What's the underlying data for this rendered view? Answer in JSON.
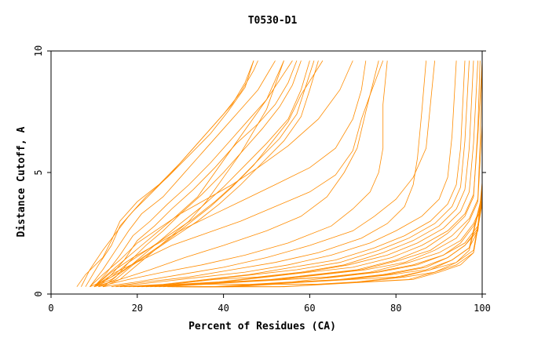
{
  "chart_data": {
    "type": "line",
    "title": "T0530-D1",
    "xlabel": "Percent of Residues (CA)",
    "ylabel": "Distance Cutoff, A",
    "xlim": [
      0,
      100
    ],
    "ylim": [
      0,
      10
    ],
    "x_ticks": [
      0,
      20,
      40,
      60,
      80,
      100
    ],
    "y_ticks": [
      0,
      5,
      10
    ],
    "x_tick_labels": [
      "0",
      "20",
      "40",
      "60",
      "80",
      "100"
    ],
    "y_tick_labels": [
      "0",
      "5",
      "10"
    ],
    "grid": false,
    "legend": "none",
    "line_color": "#ff8c00",
    "series": [
      {
        "x": [
          6,
          8,
          12,
          14,
          16,
          20,
          25,
          30,
          35,
          40,
          44,
          47,
          48
        ],
        "y": [
          0.3,
          0.8,
          1.5,
          2.2,
          3.0,
          3.8,
          4.5,
          5.4,
          6.4,
          7.4,
          8.3,
          9.2,
          9.6
        ]
      },
      {
        "x": [
          7,
          9,
          12,
          15,
          18,
          22,
          27,
          32,
          37,
          41,
          45,
          47
        ],
        "y": [
          0.3,
          1.0,
          1.8,
          2.5,
          3.2,
          4.0,
          4.8,
          5.7,
          6.6,
          7.5,
          8.5,
          9.6
        ]
      },
      {
        "x": [
          8,
          11,
          14,
          16,
          19,
          23,
          28,
          33,
          38,
          42,
          45,
          47
        ],
        "y": [
          0.3,
          1.2,
          2.0,
          2.8,
          3.4,
          4.1,
          5.0,
          6.0,
          7.0,
          7.8,
          8.7,
          9.6
        ]
      },
      {
        "x": [
          9,
          12,
          15,
          18,
          21,
          26,
          30,
          35,
          40,
          44,
          48,
          50,
          52
        ],
        "y": [
          0.3,
          1.0,
          1.8,
          2.6,
          3.3,
          4.0,
          4.8,
          5.8,
          6.8,
          7.6,
          8.4,
          9.0,
          9.6
        ]
      },
      {
        "x": [
          10,
          13,
          16,
          19,
          23,
          27,
          32,
          37,
          42,
          46,
          50,
          53,
          56
        ],
        "y": [
          0.3,
          0.9,
          1.6,
          2.4,
          3.0,
          3.7,
          4.5,
          5.4,
          6.4,
          7.2,
          8.0,
          8.8,
          9.6
        ]
      },
      {
        "x": [
          11,
          14,
          17,
          20,
          24,
          28,
          33,
          38,
          43,
          48,
          52,
          55,
          57
        ],
        "y": [
          0.3,
          0.8,
          1.4,
          2.2,
          2.8,
          3.5,
          4.3,
          5.2,
          6.2,
          7.0,
          7.8,
          8.7,
          9.6
        ]
      },
      {
        "x": [
          12,
          15,
          18,
          22,
          26,
          30,
          35,
          40,
          45,
          49,
          53,
          56,
          58
        ],
        "y": [
          0.3,
          0.7,
          1.3,
          2.0,
          2.6,
          3.3,
          4.1,
          5.0,
          6.0,
          6.8,
          7.7,
          8.6,
          9.6
        ]
      },
      {
        "x": [
          12,
          16,
          20,
          24,
          28,
          32,
          36,
          40,
          44,
          47,
          50,
          52,
          54
        ],
        "y": [
          0.3,
          0.6,
          1.2,
          1.8,
          2.4,
          3.0,
          3.8,
          4.8,
          5.8,
          6.7,
          7.6,
          8.6,
          9.6
        ]
      },
      {
        "x": [
          10,
          14,
          18,
          22,
          26,
          30,
          35,
          40,
          45,
          50,
          55,
          58,
          60
        ],
        "y": [
          0.3,
          0.6,
          1.1,
          1.7,
          2.3,
          2.9,
          3.6,
          4.4,
          5.3,
          6.2,
          7.2,
          8.4,
          9.6
        ]
      },
      {
        "x": [
          10,
          13,
          17,
          21,
          25,
          29,
          34,
          38,
          42,
          46,
          50,
          52,
          54
        ],
        "y": [
          0.3,
          0.8,
          1.4,
          2.0,
          2.6,
          3.2,
          4.0,
          5.0,
          6.0,
          7.0,
          8.0,
          8.8,
          9.6
        ]
      },
      {
        "x": [
          10,
          14,
          18,
          23,
          28,
          33,
          38,
          43,
          48,
          53,
          57,
          59,
          61
        ],
        "y": [
          0.3,
          0.7,
          1.3,
          1.9,
          2.5,
          3.1,
          3.8,
          4.6,
          5.5,
          6.4,
          7.4,
          8.5,
          9.6
        ]
      },
      {
        "x": [
          11,
          15,
          19,
          24,
          29,
          34,
          39,
          44,
          49,
          54,
          58,
          60,
          62
        ],
        "y": [
          0.3,
          0.6,
          1.2,
          1.8,
          2.4,
          3.0,
          3.7,
          4.5,
          5.4,
          6.3,
          7.3,
          8.4,
          9.6
        ]
      },
      {
        "x": [
          9,
          13,
          17,
          22,
          27,
          32,
          37,
          42,
          47,
          51,
          55,
          58,
          63
        ],
        "y": [
          0.3,
          0.6,
          1.0,
          1.6,
          2.2,
          2.9,
          3.6,
          4.4,
          5.3,
          6.2,
          7.1,
          8.2,
          9.6
        ]
      },
      {
        "x": [
          9,
          12,
          16,
          20,
          25,
          30,
          36,
          42,
          48,
          55,
          62,
          67,
          70
        ],
        "y": [
          0.3,
          0.8,
          1.4,
          2.1,
          2.7,
          3.3,
          3.9,
          4.5,
          5.2,
          6.1,
          7.2,
          8.4,
          9.6
        ]
      },
      {
        "x": [
          10,
          14,
          19,
          25,
          31,
          38,
          45,
          52,
          60,
          66,
          70,
          72,
          73
        ],
        "y": [
          0.3,
          0.9,
          1.5,
          2.1,
          2.7,
          3.3,
          3.9,
          4.5,
          5.2,
          6.0,
          7.2,
          8.4,
          9.6
        ]
      },
      {
        "x": [
          10,
          15,
          21,
          28,
          36,
          44,
          52,
          60,
          66,
          70,
          72,
          74,
          77
        ],
        "y": [
          0.3,
          0.9,
          1.4,
          2.0,
          2.5,
          3.0,
          3.6,
          4.2,
          4.9,
          5.9,
          7.2,
          8.2,
          9.6
        ]
      },
      {
        "x": [
          10,
          16,
          23,
          31,
          40,
          50,
          58,
          64,
          68,
          71,
          73,
          76
        ],
        "y": [
          0.3,
          0.6,
          1.0,
          1.5,
          2.0,
          2.6,
          3.2,
          4.0,
          5.0,
          6.0,
          7.5,
          9.6
        ]
      },
      {
        "x": [
          11,
          18,
          26,
          35,
          45,
          55,
          65,
          70,
          74,
          76,
          77,
          77,
          78
        ],
        "y": [
          0.3,
          0.6,
          0.9,
          1.2,
          1.6,
          2.1,
          2.8,
          3.5,
          4.2,
          5.0,
          6.0,
          7.8,
          9.6
        ]
      },
      {
        "x": [
          12,
          20,
          30,
          40,
          50,
          60,
          70,
          75,
          80,
          84,
          87,
          88,
          89
        ],
        "y": [
          0.3,
          0.5,
          0.8,
          1.1,
          1.5,
          2.0,
          2.6,
          3.2,
          3.9,
          4.8,
          6.0,
          7.8,
          9.6
        ]
      },
      {
        "x": [
          14,
          22,
          32,
          42,
          52,
          62,
          72,
          78,
          82,
          84,
          85,
          86,
          87
        ],
        "y": [
          0.3,
          0.5,
          0.7,
          1.0,
          1.3,
          1.7,
          2.3,
          2.9,
          3.6,
          4.5,
          5.6,
          7.5,
          9.6
        ]
      },
      {
        "x": [
          15,
          25,
          35,
          45,
          55,
          65,
          74,
          80,
          86,
          90,
          92,
          93,
          94
        ],
        "y": [
          0.3,
          0.5,
          0.7,
          0.9,
          1.2,
          1.6,
          2.1,
          2.6,
          3.2,
          3.9,
          4.8,
          6.5,
          9.6
        ]
      },
      {
        "x": [
          16,
          26,
          36,
          46,
          56,
          66,
          75,
          82,
          88,
          92,
          94,
          95,
          96
        ],
        "y": [
          0.3,
          0.4,
          0.6,
          0.8,
          1.1,
          1.4,
          1.9,
          2.4,
          3.0,
          3.7,
          4.5,
          6.0,
          9.6
        ]
      },
      {
        "x": [
          17,
          27,
          37,
          47,
          57,
          67,
          76,
          83,
          89,
          93,
          95,
          96,
          97
        ],
        "y": [
          0.3,
          0.4,
          0.6,
          0.8,
          1.0,
          1.3,
          1.8,
          2.3,
          2.9,
          3.6,
          4.4,
          6.3,
          9.6
        ]
      },
      {
        "x": [
          18,
          28,
          38,
          48,
          58,
          68,
          77,
          84,
          90,
          94,
          96,
          97,
          98
        ],
        "y": [
          0.3,
          0.4,
          0.6,
          0.7,
          0.9,
          1.2,
          1.7,
          2.2,
          2.8,
          3.5,
          4.3,
          6.0,
          9.6
        ]
      },
      {
        "x": [
          19,
          29,
          39,
          49,
          59,
          69,
          78,
          85,
          91,
          95,
          97,
          98,
          99
        ],
        "y": [
          0.3,
          0.4,
          0.5,
          0.7,
          0.9,
          1.2,
          1.6,
          2.1,
          2.7,
          3.4,
          4.2,
          6.2,
          9.6
        ]
      },
      {
        "x": [
          20,
          30,
          40,
          50,
          60,
          70,
          79,
          86,
          92,
          96,
          98,
          99,
          100
        ],
        "y": [
          0.3,
          0.4,
          0.5,
          0.7,
          0.9,
          1.1,
          1.5,
          2.0,
          2.6,
          3.3,
          4.1,
          6.5,
          9.6
        ]
      },
      {
        "x": [
          21,
          31,
          41,
          51,
          61,
          71,
          80,
          87,
          92,
          96,
          98,
          99,
          99.5
        ],
        "y": [
          0.3,
          0.4,
          0.5,
          0.6,
          0.8,
          1.0,
          1.4,
          1.9,
          2.5,
          3.2,
          4.0,
          6.8,
          9.6
        ]
      },
      {
        "x": [
          22,
          32,
          42,
          52,
          62,
          72,
          81,
          88,
          93,
          97,
          99,
          99.5,
          100
        ],
        "y": [
          0.3,
          0.4,
          0.5,
          0.6,
          0.8,
          1.0,
          1.4,
          1.8,
          2.4,
          3.1,
          3.9,
          6.2,
          9.6
        ]
      },
      {
        "x": [
          23,
          33,
          43,
          53,
          63,
          73,
          82,
          89,
          94,
          97,
          99,
          100
        ],
        "y": [
          0.3,
          0.4,
          0.5,
          0.6,
          0.8,
          1.0,
          1.3,
          1.8,
          2.3,
          3.0,
          3.8,
          7.0
        ]
      },
      {
        "x": [
          24,
          34,
          44,
          54,
          64,
          74,
          83,
          90,
          95,
          98,
          100
        ],
        "y": [
          0.3,
          0.4,
          0.5,
          0.6,
          0.7,
          0.9,
          1.3,
          1.7,
          2.2,
          2.9,
          3.7
        ]
      },
      {
        "x": [
          25,
          35,
          45,
          55,
          65,
          75,
          84,
          91,
          95,
          98,
          100
        ],
        "y": [
          0.3,
          0.4,
          0.5,
          0.6,
          0.7,
          0.9,
          1.2,
          1.6,
          2.1,
          2.8,
          3.6
        ]
      },
      {
        "x": [
          26,
          36,
          46,
          56,
          66,
          76,
          85,
          91,
          96,
          99,
          100
        ],
        "y": [
          0.3,
          0.4,
          0.4,
          0.5,
          0.7,
          0.9,
          1.2,
          1.6,
          2.1,
          2.8,
          4.6
        ]
      },
      {
        "x": [
          27,
          37,
          47,
          57,
          67,
          77,
          86,
          92,
          96,
          99,
          100
        ],
        "y": [
          0.3,
          0.3,
          0.4,
          0.5,
          0.6,
          0.8,
          1.1,
          1.5,
          2.0,
          2.7,
          4.4
        ]
      },
      {
        "x": [
          28,
          38,
          48,
          58,
          68,
          78,
          87,
          92,
          96,
          99,
          100
        ],
        "y": [
          0.3,
          0.3,
          0.4,
          0.5,
          0.6,
          0.8,
          1.1,
          1.5,
          2.0,
          2.6,
          4.3
        ]
      },
      {
        "x": [
          29,
          39,
          49,
          59,
          69,
          79,
          87,
          93,
          97,
          99,
          100
        ],
        "y": [
          0.3,
          0.3,
          0.4,
          0.5,
          0.6,
          0.8,
          1.0,
          1.4,
          1.9,
          2.6,
          4.2
        ]
      },
      {
        "x": [
          30,
          40,
          50,
          60,
          70,
          80,
          88,
          93,
          97,
          100
        ],
        "y": [
          0.3,
          0.3,
          0.4,
          0.5,
          0.6,
          0.7,
          1.0,
          1.4,
          1.9,
          4.1
        ]
      },
      {
        "x": [
          31,
          41,
          51,
          61,
          71,
          81,
          88,
          94,
          97,
          100
        ],
        "y": [
          0.3,
          0.3,
          0.4,
          0.4,
          0.5,
          0.7,
          1.0,
          1.3,
          1.8,
          4.0
        ]
      },
      {
        "x": [
          32,
          42,
          52,
          62,
          72,
          82,
          89,
          94,
          98,
          100
        ],
        "y": [
          0.3,
          0.3,
          0.4,
          0.4,
          0.5,
          0.7,
          0.9,
          1.3,
          1.8,
          3.9
        ]
      },
      {
        "x": [
          33,
          43,
          53,
          63,
          73,
          83,
          89,
          94,
          98,
          100
        ],
        "y": [
          0.3,
          0.3,
          0.3,
          0.4,
          0.5,
          0.6,
          0.9,
          1.2,
          1.7,
          3.8
        ]
      },
      {
        "x": [
          34,
          44,
          54,
          64,
          74,
          84,
          90,
          95,
          98,
          100
        ],
        "y": [
          0.3,
          0.3,
          0.3,
          0.4,
          0.5,
          0.6,
          0.9,
          1.2,
          1.7,
          3.7
        ]
      }
    ]
  }
}
